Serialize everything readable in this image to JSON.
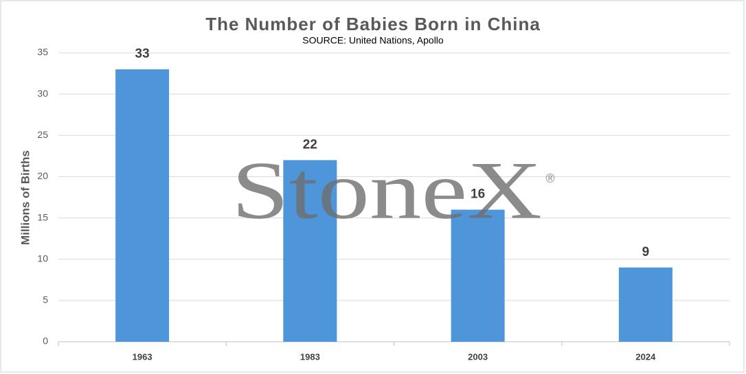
{
  "chart_data": {
    "type": "bar",
    "title": "The Number of Babies Born in China",
    "subtitle": "SOURCE: United Nations, Apollo",
    "y_label": "Millions of Births",
    "watermark": "StoneX",
    "watermark_mark": "®",
    "categories": [
      "1963",
      "1983",
      "2003",
      "2024"
    ],
    "values": [
      33,
      22,
      16,
      9
    ],
    "color": "#4f95d9",
    "ylim": [
      0,
      35
    ],
    "yticks": [
      0,
      5,
      10,
      15,
      20,
      25,
      30,
      35
    ],
    "grid": true
  }
}
